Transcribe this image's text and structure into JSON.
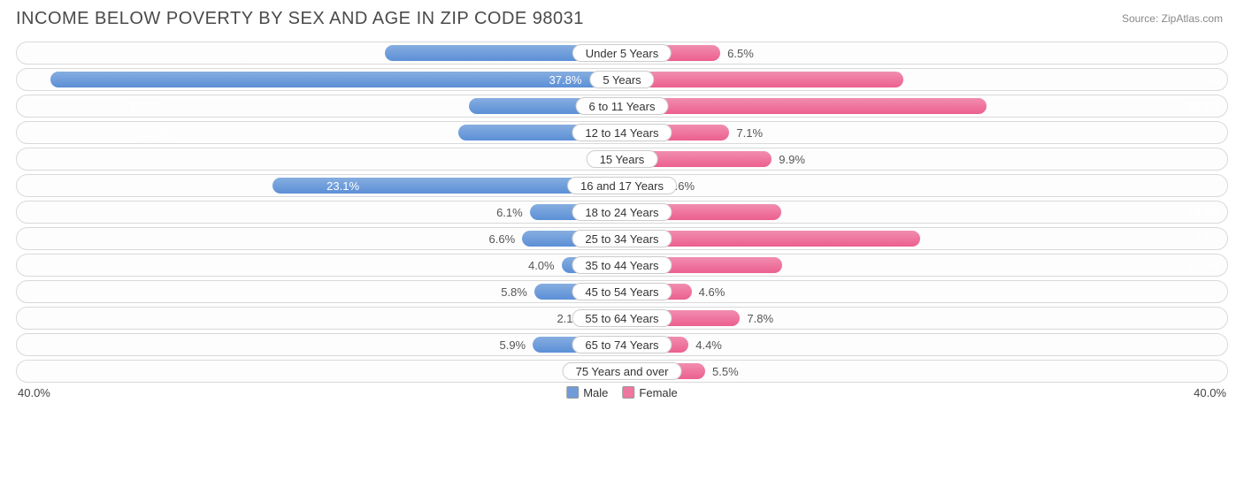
{
  "title": "INCOME BELOW POVERTY BY SEX AND AGE IN ZIP CODE 98031",
  "source": "Source: ZipAtlas.com",
  "chart": {
    "type": "diverging-bar",
    "axis_max": 40.0,
    "axis_label_left": "40.0%",
    "axis_label_right": "40.0%",
    "background_color": "#ffffff",
    "track_border_color": "#d9d9d9",
    "pill_border_color": "#cccccc",
    "text_color": "#555555",
    "title_color": "#4a4a4a",
    "male_gradient": [
      "#86aee0",
      "#5b8fd6"
    ],
    "female_gradient": [
      "#f18db0",
      "#ec5f8f"
    ],
    "label_threshold_pct": 25.0,
    "legend": {
      "male": {
        "label": "Male",
        "color": "#6f9bd8"
      },
      "female": {
        "label": "Female",
        "color": "#ee77a0"
      }
    },
    "rows": [
      {
        "category": "Under 5 Years",
        "male": 15.7,
        "female": 6.5
      },
      {
        "category": "5 Years",
        "male": 37.8,
        "female": 18.6
      },
      {
        "category": "6 to 11 Years",
        "male": 10.1,
        "female": 24.1
      },
      {
        "category": "12 to 14 Years",
        "male": 10.8,
        "female": 7.1
      },
      {
        "category": "15 Years",
        "male": 0.0,
        "female": 9.9
      },
      {
        "category": "16 and 17 Years",
        "male": 23.1,
        "female": 2.6
      },
      {
        "category": "18 to 24 Years",
        "male": 6.1,
        "female": 10.5
      },
      {
        "category": "25 to 34 Years",
        "male": 6.6,
        "female": 19.7
      },
      {
        "category": "35 to 44 Years",
        "male": 4.0,
        "female": 10.6
      },
      {
        "category": "45 to 54 Years",
        "male": 5.8,
        "female": 4.6
      },
      {
        "category": "55 to 64 Years",
        "male": 2.1,
        "female": 7.8
      },
      {
        "category": "65 to 74 Years",
        "male": 5.9,
        "female": 4.4
      },
      {
        "category": "75 Years and over",
        "male": 1.1,
        "female": 5.5
      }
    ]
  }
}
